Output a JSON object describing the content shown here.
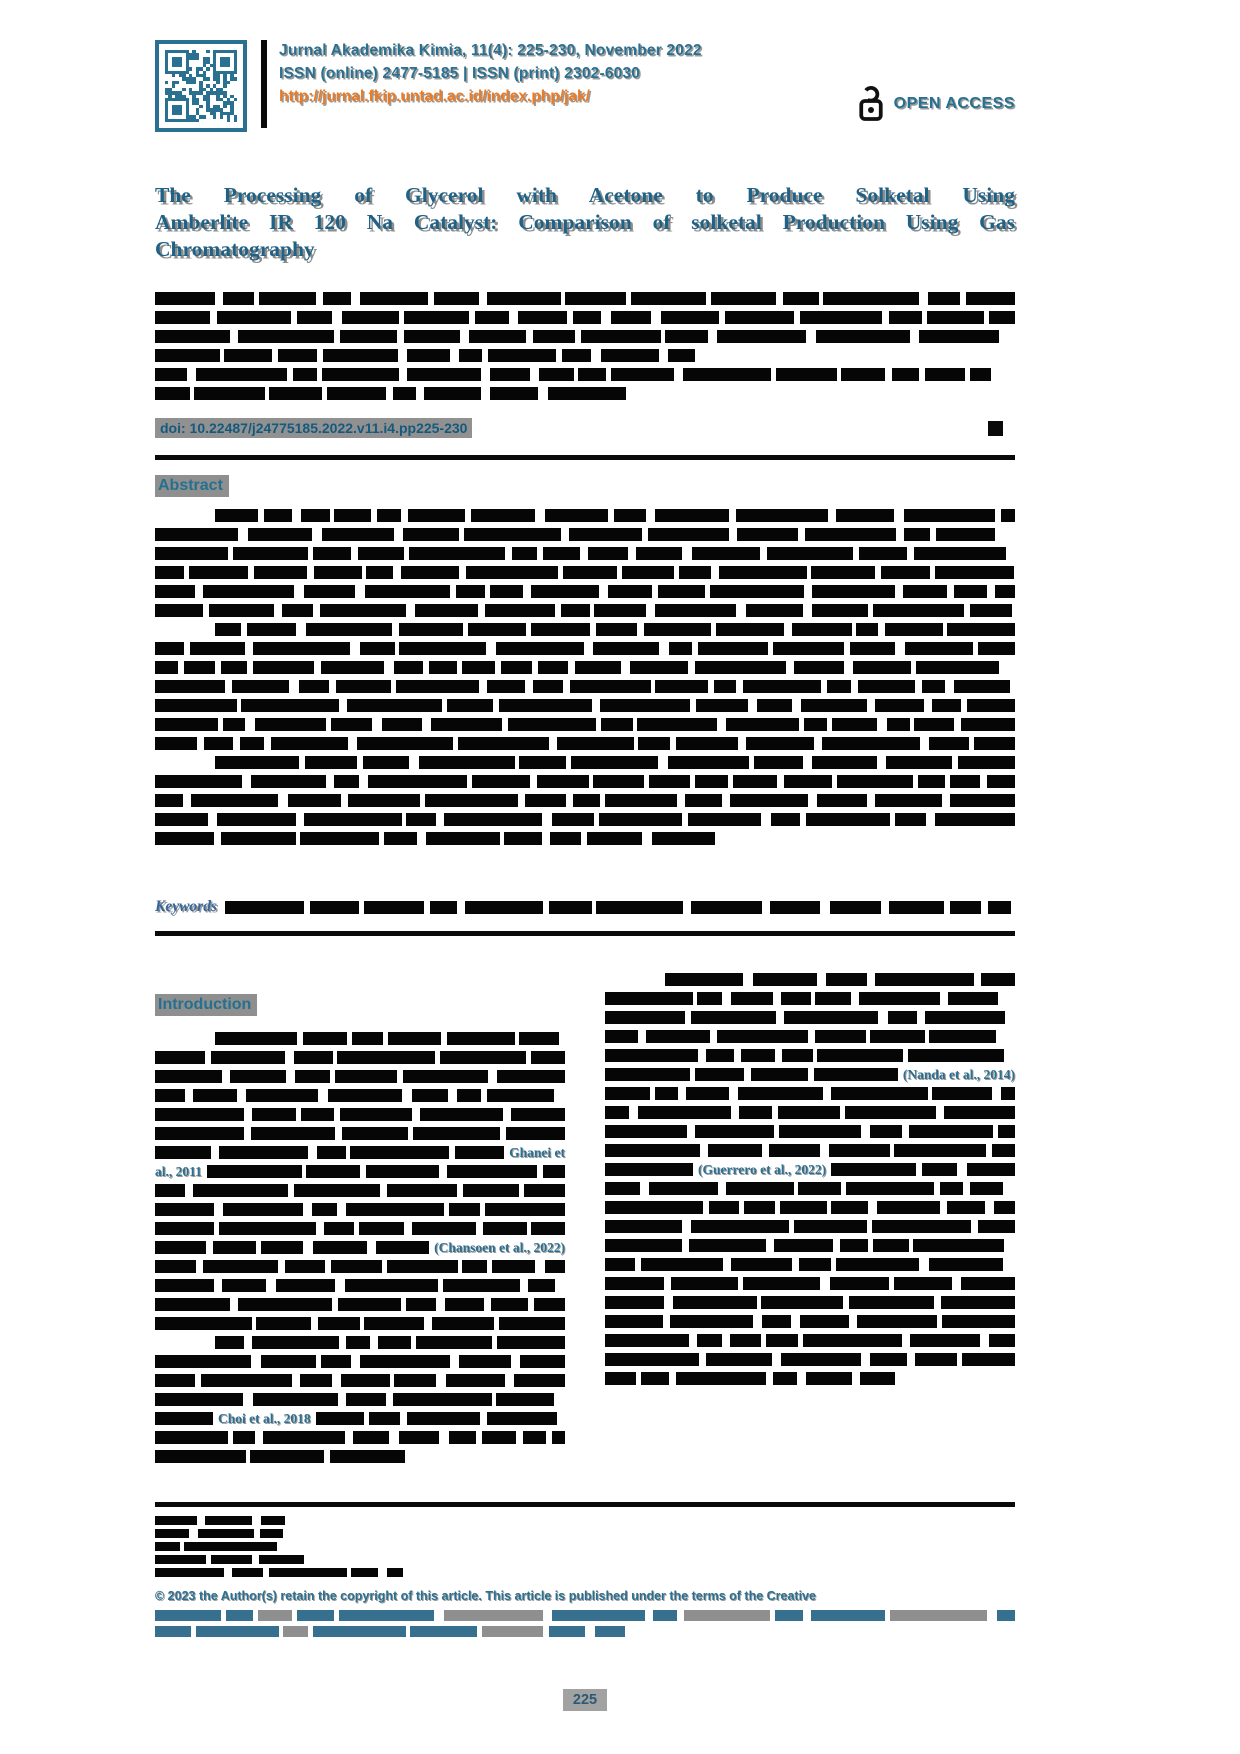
{
  "header": {
    "journal_line": "Jurnal Akademika Kimia, 11(4): 225-230, November 2022",
    "issn_line": "ISSN (online) 2477-5185 | ISSN (print) 2302-6030",
    "url": "http://jurnal.fkip.untad.ac.id/index.php/jak/",
    "open_access_label": "OPEN ACCESS"
  },
  "article": {
    "title_line1": "The Processing of Glycerol with Acetone to Produce Solketal Using",
    "title_line2": "Amberlite IR 120 Na Catalyst: Comparison of solketal Production Using Gas",
    "title_line3": "Chromatography",
    "doi": "doi: 10.22487/j24775185.2022.v11.i4.pp225-230"
  },
  "sections": {
    "abstract_heading": "Abstract",
    "keywords_label": "Keywords",
    "introduction_heading": "Introduction"
  },
  "citations": {
    "left_ghanei_a": "Ghanei et",
    "left_ghanei_b": "al., 2011",
    "left_chansoen": "(Chansoen et al., 2022)",
    "left_choi": "Choi et al., 2018",
    "right_nanda": "(Nanda et al., 2014)",
    "right_guerrero": "(Guerrero et al., 2022)"
  },
  "footer": {
    "copyright_line": "© 2023 the Author(s) retain the copyright of this article. This article is published under the terms of the Creative",
    "page_number": "225"
  },
  "colors": {
    "teal": "#26708f",
    "title_teal": "#1f6285",
    "orange": "#ed7b23",
    "redaction_black": "#060606",
    "highlight_gray": "#8f8f8f"
  }
}
